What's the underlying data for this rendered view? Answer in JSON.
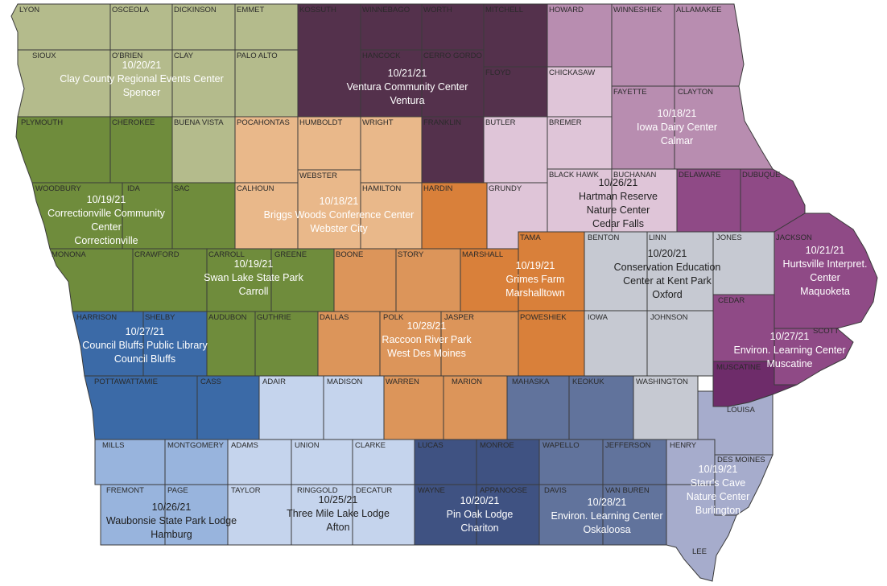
{
  "counties": {
    "lyon": "LYON",
    "osceola": "OSCEOLA",
    "dickinson": "DICKINSON",
    "emmet": "EMMET",
    "kossuth": "KOSSUTH",
    "winnebago": "WINNEBAGO",
    "worth": "WORTH",
    "mitchell": "MITCHELL",
    "howard": "HOWARD",
    "winneshiek": "WINNESHIEK",
    "allamakee": "ALLAMAKEE",
    "sioux": "SIOUX",
    "obrien": "O'BRIEN",
    "clay": "CLAY",
    "palo_alto": "PALO ALTO",
    "hancock": "HANCOCK",
    "cerro_gordo": "CERRO GORDO",
    "floyd": "FLOYD",
    "chickasaw": "CHICKASAW",
    "fayette": "FAYETTE",
    "clayton": "CLAYTON",
    "plymouth": "PLYMOUTH",
    "cherokee": "CHEROKEE",
    "buena_vista": "BUENA VISTA",
    "pocahontas": "POCAHONTAS",
    "humboldt": "HUMBOLDT",
    "wright": "WRIGHT",
    "franklin": "FRANKLIN",
    "butler": "BUTLER",
    "bremer": "BREMER",
    "webster": "WEBSTER",
    "woodbury": "WOODBURY",
    "ida": "IDA",
    "sac": "SAC",
    "calhoun": "CALHOUN",
    "hamilton": "HAMILTON",
    "hardin": "HARDIN",
    "grundy": "GRUNDY",
    "black_hawk": "BLACK HAWK",
    "buchanan": "BUCHANAN",
    "delaware": "DELAWARE",
    "dubuque": "DUBUQUE",
    "monona": "MONONA",
    "crawford": "CRAWFORD",
    "carroll": "CARROLL",
    "greene": "GREENE",
    "boone": "BOONE",
    "story": "STORY",
    "marshall": "MARSHALL",
    "tama": "TAMA",
    "benton": "BENTON",
    "linn": "LINN",
    "jones": "JONES",
    "jackson": "JACKSON",
    "harrison": "HARRISON",
    "shelby": "SHELBY",
    "audubon": "AUDUBON",
    "guthrie": "GUTHRIE",
    "dallas": "DALLAS",
    "polk": "POLK",
    "jasper": "JASPER",
    "poweshiek": "POWESHIEK",
    "iowa": "IOWA",
    "johnson": "JOHNSON",
    "cedar": "CEDAR",
    "scott": "SCOTT",
    "muscatine": "MUSCATINE",
    "pottawattamie": "POTTAWATTAMIE",
    "cass": "CASS",
    "adair": "ADAIR",
    "madison": "MADISON",
    "warren": "WARREN",
    "marion": "MARION",
    "mahaska": "MAHASKA",
    "keokuk": "KEOKUK",
    "washington": "WASHINGTON",
    "louisa": "LOUISA",
    "mills": "MILLS",
    "montgomery": "MONTGOMERY",
    "adams": "ADAMS",
    "union": "UNION",
    "clarke": "CLARKE",
    "lucas": "LUCAS",
    "monroe": "MONROE",
    "wapello": "WAPELLO",
    "jefferson": "JEFFERSON",
    "henry": "HENRY",
    "des_moines": "DES MOINES",
    "fremont": "FREMONT",
    "page": "PAGE",
    "taylor": "TAYLOR",
    "ringgold": "RINGGOLD",
    "decatur": "DECATUR",
    "wayne": "WAYNE",
    "appanoose": "APPANOOSE",
    "davis": "DAVIS",
    "van_buren": "VAN BUREN",
    "lee": "LEE"
  },
  "events": {
    "spencer": {
      "date": "10/20/21",
      "venue": "Clay County Regional Events Center",
      "city": "Spencer"
    },
    "ventura": {
      "date": "10/21/21",
      "venue": "Ventura Community Center",
      "city": "Ventura"
    },
    "calmar": {
      "date": "10/18/21",
      "venue": "Iowa Dairy Center",
      "city": "Calmar"
    },
    "correctionville": {
      "date": "10/19/21",
      "venue_line1": "Correctionville Community",
      "venue_line2": "Center",
      "city": "Correctionville"
    },
    "webster_city": {
      "date": "10/18/21",
      "venue": "Briggs Woods Conference Center",
      "city": "Webster City"
    },
    "cedar_falls": {
      "date": "10/26/21",
      "venue_line1": "Hartman Reserve",
      "venue_line2": "Nature Center",
      "city": "Cedar Falls"
    },
    "carroll": {
      "date": "10/19/21",
      "venue": "Swan Lake State Park",
      "city": "Carroll"
    },
    "marshalltown": {
      "date": "10/19/21",
      "venue": "Grimes Farm",
      "city": "Marshalltown"
    },
    "oxford": {
      "date": "10/20/21",
      "venue_line1": "Conservation Education",
      "venue_line2": "Center at Kent Park",
      "city": "Oxford"
    },
    "maquoketa": {
      "date": "10/21/21",
      "venue_line1": "Hurtsville Interpret.",
      "venue_line2": "Center",
      "city": "Maquoketa"
    },
    "council_bluffs": {
      "date": "10/27/21",
      "venue": "Council Bluffs Public Library",
      "city": "Council Bluffs"
    },
    "west_des_moines": {
      "date": "10/28/21",
      "venue": "Raccoon River Park",
      "city": "West Des Moines"
    },
    "muscatine": {
      "date": "10/27/21",
      "venue": "Environ. Learning Center",
      "city": "Muscatine"
    },
    "hamburg": {
      "date": "10/26/21",
      "venue": "Waubonsie State Park Lodge",
      "city": "Hamburg"
    },
    "afton": {
      "date": "10/25/21",
      "venue": "Three Mile Lake Lodge",
      "city": "Afton"
    },
    "chariton": {
      "date": "10/20/21",
      "venue": "Pin Oak Lodge",
      "city": "Chariton"
    },
    "oskaloosa": {
      "date": "10/28/21",
      "venue": "Environ. Learning Center",
      "city": "Oskaloosa"
    },
    "burlington": {
      "date": "10/19/21",
      "venue_line1": "Starr's Cave",
      "venue_line2": "Nature Center",
      "city": "Burlington"
    }
  },
  "region_colors": {
    "northwest": "#b4bb8c",
    "west_central": "#6f8c3c",
    "central_north": "#e9b88a",
    "north_central": "#54314c",
    "northeast": "#b88db0",
    "east_central": "#8f4a86",
    "central": "#dc955a",
    "marshall": "#d9803a",
    "east": "#c6c9d2",
    "southwest_dark": "#3b6aa7",
    "south_light": "#c5d4ed",
    "southwest_mid": "#98b4dd",
    "south_central": "#3f5282",
    "southeast": "#61739c",
    "southeast_light": "#a6accc",
    "muscatine": "#6e2c6a",
    "buchanan": "#dfc5d8"
  }
}
